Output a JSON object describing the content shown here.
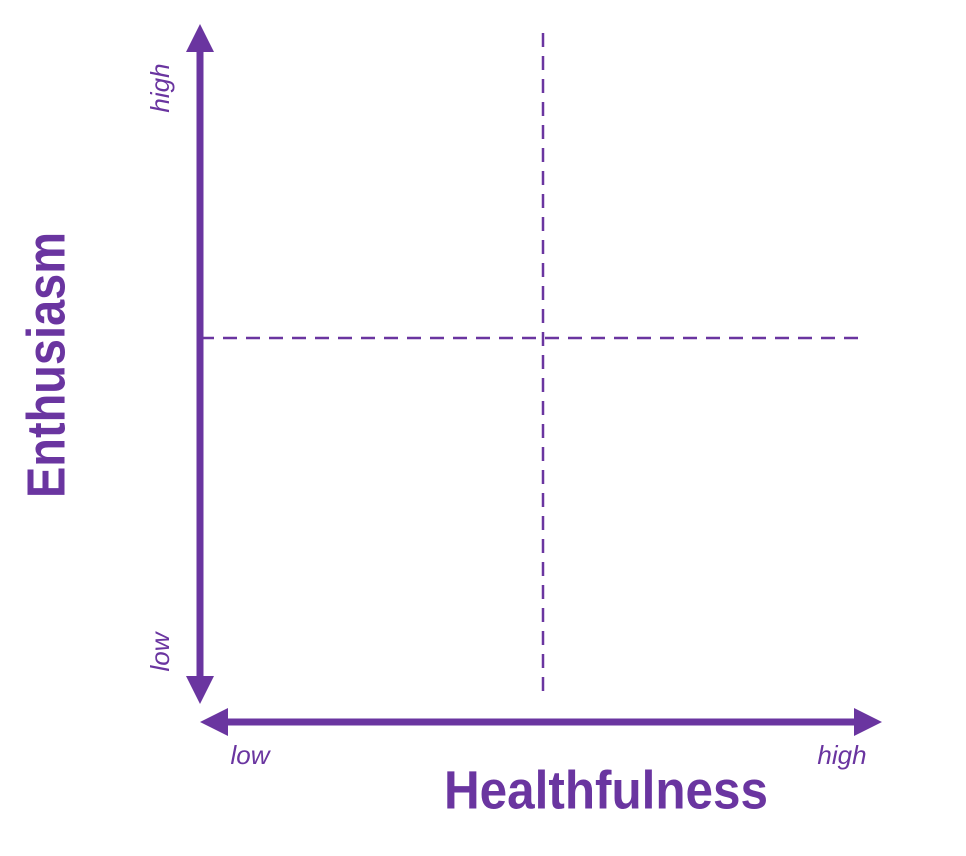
{
  "y_axis": {
    "title": "Enthusiasm",
    "high": "high",
    "low": "low"
  },
  "x_axis": {
    "title": "Healthfulness",
    "low": "low",
    "high": "high"
  }
}
